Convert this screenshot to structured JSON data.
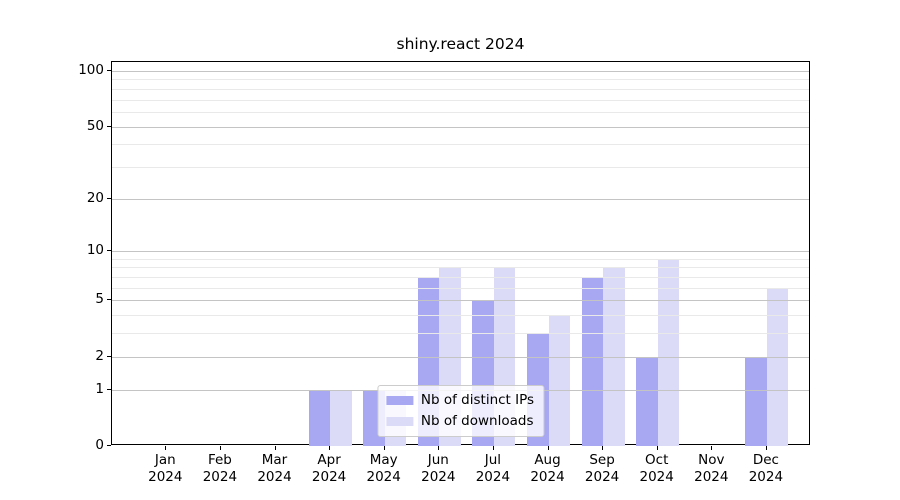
{
  "figure": {
    "title": "shiny.react 2024"
  },
  "chart_data": {
    "type": "bar",
    "title": "shiny.react 2024",
    "categories": [
      "Jan",
      "Feb",
      "Mar",
      "Apr",
      "May",
      "Jun",
      "Jul",
      "Aug",
      "Sep",
      "Oct",
      "Nov",
      "Dec"
    ],
    "x_year_label": "2024",
    "series": [
      {
        "name": "Nb of distinct IPs",
        "color": "#a7a7f2",
        "values": [
          0,
          0,
          0,
          1,
          1,
          7,
          5,
          3,
          7,
          2,
          0,
          2
        ]
      },
      {
        "name": "Nb of downloads",
        "color": "#dbdbf8",
        "values": [
          0,
          0,
          0,
          1,
          1,
          8,
          8,
          4,
          8,
          9,
          0,
          6
        ]
      }
    ],
    "y_axis": {
      "scale": "log1p",
      "ylim": [
        0,
        100
      ],
      "major_ticks": [
        0,
        1,
        2,
        5,
        10,
        20,
        50,
        100
      ],
      "minor_ticks": [
        3,
        4,
        6,
        7,
        8,
        9,
        30,
        40,
        60,
        70,
        80,
        90
      ]
    },
    "xlabel": "",
    "ylabel": "",
    "grid": true,
    "legend": {
      "position": "lower center",
      "entries": [
        "Nb of distinct IPs",
        "Nb of downloads"
      ]
    },
    "colors": {
      "distinct_ips_bar": "#a7a7f2",
      "downloads_bar": "#dbdbf8",
      "major_grid": "#c4c4c4",
      "minor_grid": "#e9e9e9",
      "spine": "#000000",
      "text": "#000000",
      "legend_border": "#cccccc"
    }
  }
}
